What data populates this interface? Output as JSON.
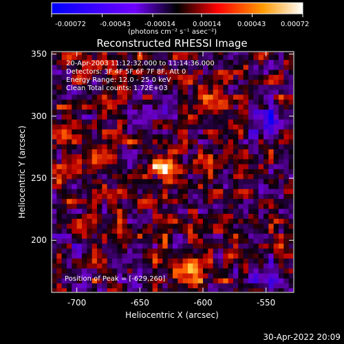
{
  "chart_data": {
    "type": "heatmap",
    "title": "Reconstructed RHESSI Image",
    "xlabel": "Heliocentric X (arcsec)",
    "ylabel": "Heliocentric Y (arcsec)",
    "xlim": [
      -720,
      -528
    ],
    "ylim": [
      158,
      352
    ],
    "x_ticks": [
      -700,
      -650,
      -600,
      -550
    ],
    "y_ticks": [
      200,
      250,
      300,
      350
    ],
    "colorbar": {
      "min": -0.00072,
      "max": 0.00072,
      "tick_values": [
        -0.00072,
        -0.00043,
        -0.00014,
        0.00014,
        0.00043,
        0.00072
      ],
      "tick_labels": [
        "-0.00072",
        "-0.00043",
        "-0.00014",
        "0.00014",
        "0.00043",
        "0.00072"
      ],
      "units": "(photons cm⁻² s⁻¹ asec⁻²)"
    },
    "annotations": {
      "time_range": "20-Apr-2003 11:12:32.000 to 11:14:36.000",
      "detectors": "Detectors: 3F 4F 5F 6F 7F 8F, Att 0",
      "energy": "Energy Range: 12.0 - 25.0 keV",
      "clean": "Clean     Total counts: 1.72E+03",
      "peak": "Position of Peak = [-629,260]"
    },
    "peak_position": [
      -629,
      260
    ],
    "bright_regions": [
      {
        "x": -629,
        "y": 260,
        "intensity": 1.0
      },
      {
        "x": -610,
        "y": 180,
        "intensity": 0.75
      },
      {
        "x": -705,
        "y": 290,
        "intensity": 0.45
      },
      {
        "x": -665,
        "y": 205,
        "intensity": 0.4
      },
      {
        "x": -585,
        "y": 265,
        "intensity": 0.35
      },
      {
        "x": -600,
        "y": 325,
        "intensity": 0.3
      },
      {
        "x": -675,
        "y": 320,
        "intensity": 0.25
      }
    ],
    "dark_regions": [
      {
        "x": -552,
        "y": 292,
        "intensity": -0.7
      },
      {
        "x": -552,
        "y": 172,
        "intensity": -0.55
      },
      {
        "x": -635,
        "y": 305,
        "intensity": -0.35
      },
      {
        "x": -705,
        "y": 200,
        "intensity": -0.3
      }
    ]
  },
  "footer": {
    "date": "30-Apr-2022 20:09"
  }
}
